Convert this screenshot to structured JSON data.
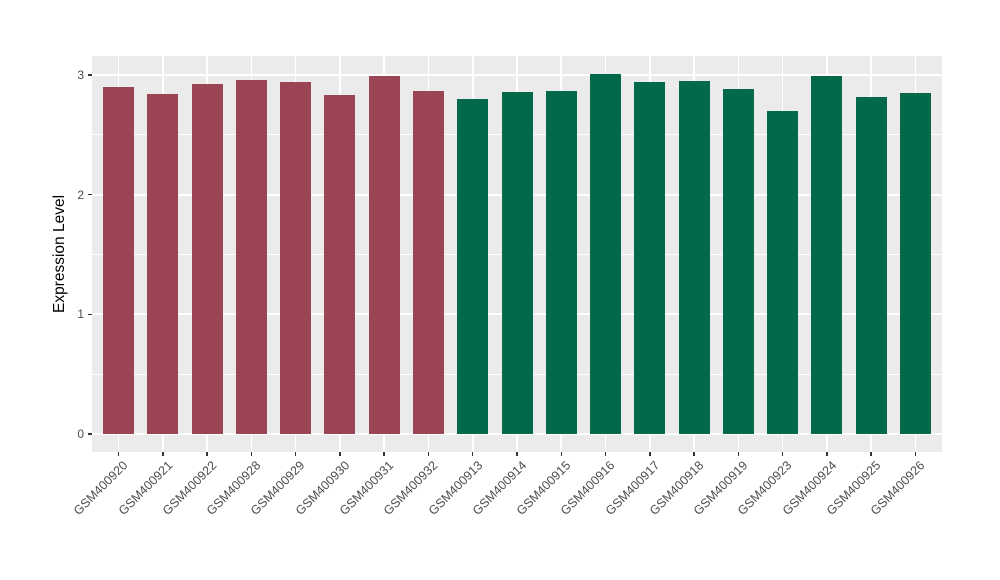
{
  "figure": {
    "background": "#ffffff",
    "panel_background": "#ebebeb",
    "grid_color": "#ffffff",
    "axis_tick_color": "#333333",
    "axis_text_color": "#4d4d4d",
    "axis_title_color": "#000000"
  },
  "chart_data": {
    "type": "bar",
    "title": "",
    "xlabel": "",
    "ylabel": "Expression Level",
    "categories": [
      "GSM400920",
      "GSM400921",
      "GSM400922",
      "GSM400928",
      "GSM400929",
      "GSM400930",
      "GSM400931",
      "GSM400932",
      "GSM400913",
      "GSM400914",
      "GSM400915",
      "GSM400916",
      "GSM400917",
      "GSM400918",
      "GSM400919",
      "GSM400923",
      "GSM400924",
      "GSM400925",
      "GSM400926"
    ],
    "values": [
      2.9,
      2.84,
      2.93,
      2.96,
      2.94,
      2.83,
      2.99,
      2.87,
      2.8,
      2.86,
      2.87,
      3.01,
      2.94,
      2.95,
      2.88,
      2.7,
      2.99,
      2.82,
      2.85
    ],
    "groups": [
      "group1",
      "group1",
      "group1",
      "group1",
      "group1",
      "group1",
      "group1",
      "group1",
      "group2",
      "group2",
      "group2",
      "group2",
      "group2",
      "group2",
      "group2",
      "group2",
      "group2",
      "group2",
      "group2"
    ],
    "group_colors": {
      "group1": "#9b4453",
      "group2": "#04694b"
    },
    "ytick_labels": [
      "0",
      "1",
      "2",
      "3"
    ],
    "yticks": [
      0,
      1,
      2,
      3
    ],
    "ylim": [
      -0.15,
      3.16
    ],
    "grid": true,
    "legend_position": "none"
  }
}
